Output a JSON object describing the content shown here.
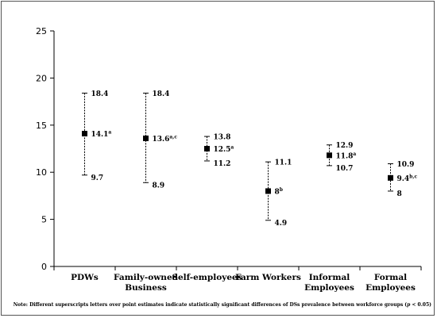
{
  "chart_data": {
    "type": "scatter",
    "categories": [
      "PDWs",
      "Family-owned Business",
      "Self-employees",
      "Farm Workers",
      "Informal Employees",
      "Formal Employees"
    ],
    "category_lines": [
      [
        "PDWs"
      ],
      [
        "Family-owned",
        "Business"
      ],
      [
        "Self-employees"
      ],
      [
        "Farm Workers"
      ],
      [
        "Informal",
        "Employees"
      ],
      [
        "Formal",
        "Employees"
      ]
    ],
    "points": [
      {
        "estimate": 14.1,
        "estimate_label": "14.1",
        "superscript": "a",
        "upper": 18.4,
        "upper_label": "18.4",
        "lower": 9.7,
        "lower_label": "9.7"
      },
      {
        "estimate": 13.6,
        "estimate_label": "13.6",
        "superscript": "a,c",
        "upper": 18.4,
        "upper_label": "18.4",
        "lower": 8.9,
        "lower_label": "8.9"
      },
      {
        "estimate": 12.5,
        "estimate_label": "12.5",
        "superscript": "a",
        "upper": 13.8,
        "upper_label": "13.8",
        "lower": 11.2,
        "lower_label": "11.2"
      },
      {
        "estimate": 8,
        "estimate_label": "8",
        "superscript": "b",
        "upper": 11.1,
        "upper_label": "11.1",
        "lower": 4.9,
        "lower_label": "4.9"
      },
      {
        "estimate": 11.8,
        "estimate_label": "11.8",
        "superscript": "a",
        "upper": 12.9,
        "upper_label": "12.9",
        "lower": 10.7,
        "lower_label": "10.7"
      },
      {
        "estimate": 9.4,
        "estimate_label": "9.4",
        "superscript": "b,c",
        "upper": 10.9,
        "upper_label": "10.9",
        "lower": 8,
        "lower_label": "8"
      }
    ],
    "ylim": [
      0,
      25
    ],
    "yticks": [
      0,
      5,
      10,
      15,
      20,
      25
    ],
    "ytick_labels": [
      "0",
      "5",
      "10",
      "15",
      "20",
      "25"
    ],
    "grid": false,
    "note": {
      "prefix": "Note: Different superscripts letters over point estimates indicate statistically significant differences of DSs prevalence between workforce groups (",
      "italic": "p",
      "suffix": " < 0.05)"
    }
  }
}
